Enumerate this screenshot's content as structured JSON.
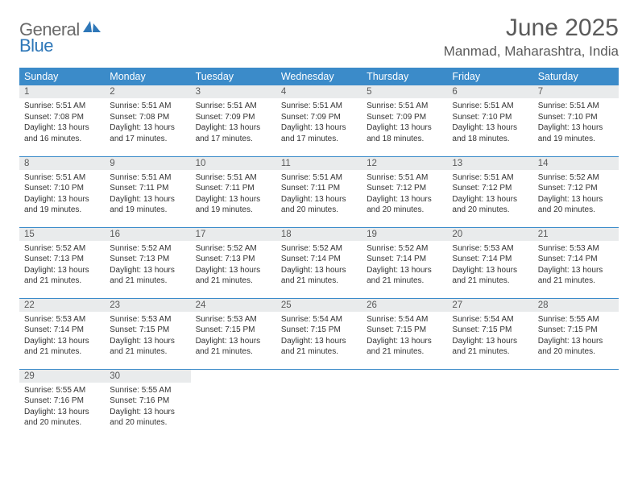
{
  "branding": {
    "general": "General",
    "blue": "Blue",
    "logo_fill": "#2e77b8"
  },
  "header": {
    "month_title": "June 2025",
    "location": "Manmad, Maharashtra, India"
  },
  "styling": {
    "header_bg": "#3b8bc9",
    "header_text": "#ffffff",
    "daynum_bg": "#e9ebec",
    "daynum_text": "#5a5a5a",
    "cell_border": "#3b8bc9",
    "body_text": "#333333",
    "title_text": "#5a5a5a",
    "font_family": "Arial",
    "th_fontsize": 12.5,
    "daynum_fontsize": 11.5,
    "daytext_fontsize": 10,
    "month_title_fontsize": 30,
    "location_fontsize": 17
  },
  "weekdays": [
    "Sunday",
    "Monday",
    "Tuesday",
    "Wednesday",
    "Thursday",
    "Friday",
    "Saturday"
  ],
  "weeks": [
    [
      {
        "n": "1",
        "sr": "5:51 AM",
        "ss": "7:08 PM",
        "dl": "13 hours and 16 minutes."
      },
      {
        "n": "2",
        "sr": "5:51 AM",
        "ss": "7:08 PM",
        "dl": "13 hours and 17 minutes."
      },
      {
        "n": "3",
        "sr": "5:51 AM",
        "ss": "7:09 PM",
        "dl": "13 hours and 17 minutes."
      },
      {
        "n": "4",
        "sr": "5:51 AM",
        "ss": "7:09 PM",
        "dl": "13 hours and 17 minutes."
      },
      {
        "n": "5",
        "sr": "5:51 AM",
        "ss": "7:09 PM",
        "dl": "13 hours and 18 minutes."
      },
      {
        "n": "6",
        "sr": "5:51 AM",
        "ss": "7:10 PM",
        "dl": "13 hours and 18 minutes."
      },
      {
        "n": "7",
        "sr": "5:51 AM",
        "ss": "7:10 PM",
        "dl": "13 hours and 19 minutes."
      }
    ],
    [
      {
        "n": "8",
        "sr": "5:51 AM",
        "ss": "7:10 PM",
        "dl": "13 hours and 19 minutes."
      },
      {
        "n": "9",
        "sr": "5:51 AM",
        "ss": "7:11 PM",
        "dl": "13 hours and 19 minutes."
      },
      {
        "n": "10",
        "sr": "5:51 AM",
        "ss": "7:11 PM",
        "dl": "13 hours and 19 minutes."
      },
      {
        "n": "11",
        "sr": "5:51 AM",
        "ss": "7:11 PM",
        "dl": "13 hours and 20 minutes."
      },
      {
        "n": "12",
        "sr": "5:51 AM",
        "ss": "7:12 PM",
        "dl": "13 hours and 20 minutes."
      },
      {
        "n": "13",
        "sr": "5:51 AM",
        "ss": "7:12 PM",
        "dl": "13 hours and 20 minutes."
      },
      {
        "n": "14",
        "sr": "5:52 AM",
        "ss": "7:12 PM",
        "dl": "13 hours and 20 minutes."
      }
    ],
    [
      {
        "n": "15",
        "sr": "5:52 AM",
        "ss": "7:13 PM",
        "dl": "13 hours and 21 minutes."
      },
      {
        "n": "16",
        "sr": "5:52 AM",
        "ss": "7:13 PM",
        "dl": "13 hours and 21 minutes."
      },
      {
        "n": "17",
        "sr": "5:52 AM",
        "ss": "7:13 PM",
        "dl": "13 hours and 21 minutes."
      },
      {
        "n": "18",
        "sr": "5:52 AM",
        "ss": "7:14 PM",
        "dl": "13 hours and 21 minutes."
      },
      {
        "n": "19",
        "sr": "5:52 AM",
        "ss": "7:14 PM",
        "dl": "13 hours and 21 minutes."
      },
      {
        "n": "20",
        "sr": "5:53 AM",
        "ss": "7:14 PM",
        "dl": "13 hours and 21 minutes."
      },
      {
        "n": "21",
        "sr": "5:53 AM",
        "ss": "7:14 PM",
        "dl": "13 hours and 21 minutes."
      }
    ],
    [
      {
        "n": "22",
        "sr": "5:53 AM",
        "ss": "7:14 PM",
        "dl": "13 hours and 21 minutes."
      },
      {
        "n": "23",
        "sr": "5:53 AM",
        "ss": "7:15 PM",
        "dl": "13 hours and 21 minutes."
      },
      {
        "n": "24",
        "sr": "5:53 AM",
        "ss": "7:15 PM",
        "dl": "13 hours and 21 minutes."
      },
      {
        "n": "25",
        "sr": "5:54 AM",
        "ss": "7:15 PM",
        "dl": "13 hours and 21 minutes."
      },
      {
        "n": "26",
        "sr": "5:54 AM",
        "ss": "7:15 PM",
        "dl": "13 hours and 21 minutes."
      },
      {
        "n": "27",
        "sr": "5:54 AM",
        "ss": "7:15 PM",
        "dl": "13 hours and 21 minutes."
      },
      {
        "n": "28",
        "sr": "5:55 AM",
        "ss": "7:15 PM",
        "dl": "13 hours and 20 minutes."
      }
    ],
    [
      {
        "n": "29",
        "sr": "5:55 AM",
        "ss": "7:16 PM",
        "dl": "13 hours and 20 minutes."
      },
      {
        "n": "30",
        "sr": "5:55 AM",
        "ss": "7:16 PM",
        "dl": "13 hours and 20 minutes."
      },
      null,
      null,
      null,
      null,
      null
    ]
  ],
  "labels": {
    "sunrise": "Sunrise:",
    "sunset": "Sunset:",
    "daylight": "Daylight:"
  }
}
